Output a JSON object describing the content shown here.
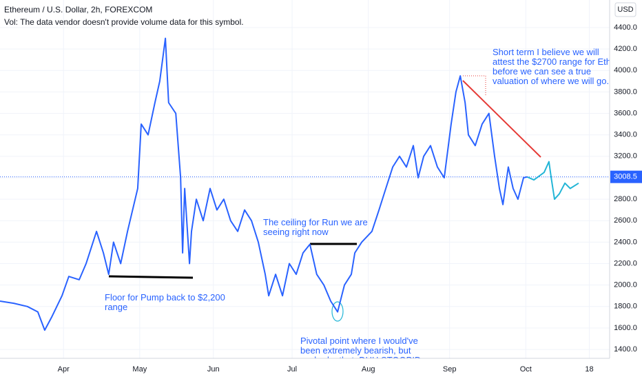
{
  "chart_data": {
    "type": "line",
    "title": "Ethereum / U.S. Dollar, 2h, FOREXCOM",
    "subtitle": "Vol: The data vendor doesn't provide volume data for this symbol.",
    "currency": "USD",
    "last_price": 3008.5,
    "xlim": [
      0,
      240
    ],
    "xticks": [
      {
        "value": 25,
        "label": "Apr"
      },
      {
        "value": 55,
        "label": "May"
      },
      {
        "value": 84,
        "label": "Jun"
      },
      {
        "value": 115,
        "label": "Jul"
      },
      {
        "value": 145,
        "label": "Aug"
      },
      {
        "value": 177,
        "label": "Sep"
      },
      {
        "value": 207,
        "label": "Oct"
      },
      {
        "value": 232,
        "label": "18"
      }
    ],
    "ylim": [
      1317,
      4657
    ],
    "yticks": [
      {
        "value": 1400,
        "label": "1400.0"
      },
      {
        "value": 1600,
        "label": "1600.0"
      },
      {
        "value": 1800,
        "label": "1800.0"
      },
      {
        "value": 2000,
        "label": "2000.0"
      },
      {
        "value": 2200,
        "label": "2200.0"
      },
      {
        "value": 2400,
        "label": "2400.0"
      },
      {
        "value": 2600,
        "label": "2600.0"
      },
      {
        "value": 2800,
        "label": "2800.0"
      },
      {
        "value": 3000,
        "label": "3000.0"
      },
      {
        "value": 3200,
        "label": "3200.0"
      },
      {
        "value": 3400,
        "label": "3400.0"
      },
      {
        "value": 3600,
        "label": "3600.0"
      },
      {
        "value": 3800,
        "label": "3800.0"
      },
      {
        "value": 4000,
        "label": "4000.0"
      },
      {
        "value": 4200,
        "label": "4200.0"
      },
      {
        "value": 4400,
        "label": "4400.0"
      }
    ],
    "grid": true,
    "series": [
      {
        "color": "#2962ff",
        "x": [
          0,
          5.4,
          10.8,
          14.9,
          17.6,
          20.3,
          24.4,
          27.1,
          31.2,
          33.9,
          38,
          40.7,
          42.8,
          44.7,
          47.5,
          50.2,
          54.2,
          55.6,
          58.3,
          61,
          62.9,
          65.1,
          66.4,
          69.2,
          71.1,
          71.9,
          72.7,
          74.6,
          75.4,
          77.3,
          80,
          82.7,
          85.4,
          88.1,
          90.8,
          93.6,
          96.3,
          99,
          101.7,
          104.4,
          105.8,
          108.5,
          111.2,
          113.9,
          116.6,
          119.3,
          122,
          124.7,
          127.5,
          130.2,
          132.9,
          135.6,
          138.3,
          139.7,
          142.4,
          146.4,
          149.2,
          151.9,
          154.6,
          157.3,
          160,
          162.7,
          164.6,
          166.8,
          169.5,
          172.2,
          174.9,
          177.6,
          179.5,
          181.2,
          183.1,
          184.4,
          187.1,
          189.8,
          192.5,
          194.7,
          196.6,
          198,
          200.1,
          202,
          203.9,
          206.1,
          207.5
        ],
        "values": [
          1850,
          1830,
          1800,
          1750,
          1580,
          1700,
          1900,
          2080,
          2050,
          2200,
          2500,
          2300,
          2100,
          2400,
          2200,
          2500,
          2900,
          3500,
          3400,
          3700,
          3900,
          4300,
          3700,
          3600,
          3000,
          2300,
          2900,
          2200,
          2500,
          2800,
          2600,
          2900,
          2700,
          2800,
          2600,
          2500,
          2700,
          2600,
          2400,
          2100,
          1900,
          2100,
          1900,
          2200,
          2100,
          2300,
          2380,
          2100,
          2000,
          1850,
          1750,
          2000,
          2100,
          2300,
          2400,
          2500,
          2700,
          2900,
          3100,
          3200,
          3100,
          3300,
          3000,
          3200,
          3300,
          3100,
          3000,
          3500,
          3800,
          3950,
          3700,
          3400,
          3300,
          3500,
          3600,
          3200,
          2900,
          2750,
          3100,
          2900,
          2800,
          3000,
          3008.5
        ]
      },
      {
        "color": "#22b5d6",
        "x": [
          207.5,
          210.2,
          214.2,
          216.1,
          217,
          218.3,
          220.2,
          222.4,
          224.5,
          227.8
        ],
        "values": [
          3008.5,
          2980,
          3050,
          3150,
          3000,
          2800,
          2850,
          2950,
          2900,
          2950
        ]
      }
    ],
    "annotations": [
      {
        "lines": [
          "Short term I believe we will",
          "attest the $2700 range for Eth",
          "before we can see a true",
          "valuation of where we will go."
        ]
      },
      {
        "lines": [
          "The ceiling for Run we are",
          "seeing right now"
        ]
      },
      {
        "lines": [
          "Floor for Pump back to $2,200",
          "range"
        ]
      },
      {
        "lines": [
          "Pivotal point where I would've",
          "been extremely bearish, but",
          "we broke that. DUH STOOPID"
        ]
      }
    ]
  }
}
